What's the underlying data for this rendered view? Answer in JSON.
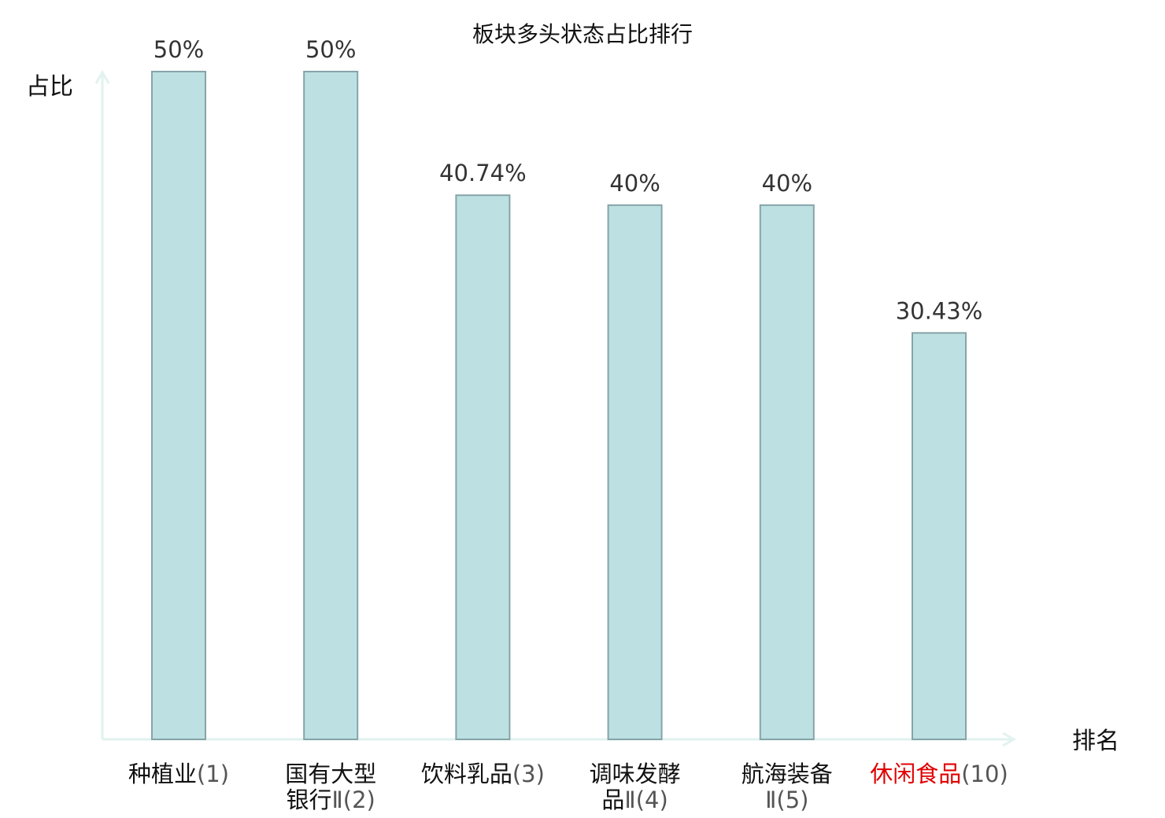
{
  "chart_data": {
    "type": "bar",
    "title": "板块多头状态占比排行",
    "xlabel": "排名",
    "ylabel": "占比",
    "categories": [
      {
        "lines": [
          {
            "name": "种植业",
            "rank": "(1)"
          }
        ],
        "full": "种植业(1)",
        "highlight": false
      },
      {
        "lines": [
          {
            "name": "国有大型",
            "rank": ""
          },
          {
            "name": "银行",
            "rank": "Ⅱ(2)"
          }
        ],
        "full": "国有大型银行Ⅱ(2)",
        "highlight": false
      },
      {
        "lines": [
          {
            "name": "饮料乳品",
            "rank": "(3)"
          }
        ],
        "full": "饮料乳品(3)",
        "highlight": false
      },
      {
        "lines": [
          {
            "name": "调味发酵",
            "rank": ""
          },
          {
            "name": "品",
            "rank": "Ⅱ(4)"
          }
        ],
        "full": "调味发酵品Ⅱ(4)",
        "highlight": false
      },
      {
        "lines": [
          {
            "name": "航海装备",
            "rank": ""
          },
          {
            "name": "",
            "rank": "Ⅱ(5)"
          }
        ],
        "full": "航海装备Ⅱ(5)",
        "highlight": false
      },
      {
        "lines": [
          {
            "name": "休闲食品",
            "rank": "(10)"
          }
        ],
        "full": "休闲食品(10)",
        "highlight": true
      }
    ],
    "values": [
      50,
      50,
      40.74,
      40,
      40,
      30.43
    ],
    "value_labels": [
      "50%",
      "50%",
      "40.74%",
      "40%",
      "40%",
      "30.43%"
    ],
    "ylim": [
      0,
      50
    ],
    "grid": false,
    "legend": "none",
    "colors": {
      "bar_fill": "#bde0e3",
      "bar_stroke": "#86a4a8",
      "axis": "#e2f2ef",
      "highlight_text": "#e00000"
    }
  }
}
